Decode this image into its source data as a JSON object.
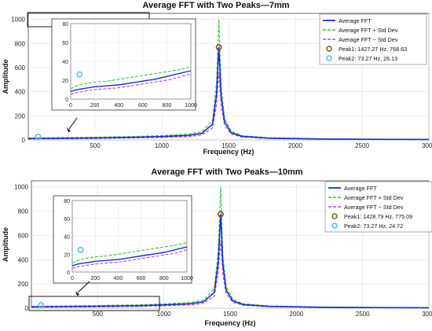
{
  "colors": {
    "mean": "#1a2ed6",
    "plus": "#3fc23f",
    "minus": "#b04ae0",
    "peak1": "#7a5a1e",
    "peak2": "#5bb8e8",
    "box": "#000000"
  },
  "chart_data": [
    {
      "type": "line",
      "title": "Average FFT with Two Peaks—7mm",
      "xlabel": "Frequency (Hz)",
      "ylabel": "Amplitude",
      "xlim": [
        0,
        3000
      ],
      "ylim": [
        0,
        1050
      ],
      "xticks": [
        "500",
        "1000",
        "1500",
        "2000",
        "2500",
        "3000"
      ],
      "xtick_values": [
        500,
        1000,
        1500,
        2000,
        2500,
        3000
      ],
      "yticks": [
        "0",
        "200",
        "400",
        "600",
        "800",
        "1000"
      ],
      "ytick_values": [
        0,
        200,
        400,
        600,
        800,
        1000
      ],
      "grid": true,
      "legend_position": "top-right",
      "legend": [
        "Average FFT",
        "Average FFT + Std Dev",
        "Average FFT − Std Dev",
        "Peak1: 1427.27 Hz, 768.63",
        "Peak2: 73.27 Hz, 26.13"
      ],
      "series": [
        {
          "name": "Average FFT",
          "x": [
            0,
            200,
            500,
            800,
            1000,
            1200,
            1300,
            1380,
            1410,
            1427.27,
            1445,
            1470,
            1520,
            1600,
            1800,
            2200,
            2600,
            3000
          ],
          "y": [
            12,
            14,
            17,
            22,
            28,
            38,
            55,
            130,
            380,
            768.63,
            360,
            150,
            60,
            30,
            15,
            8,
            5,
            4
          ]
        },
        {
          "name": "Average FFT + Std Dev",
          "x": [
            0,
            200,
            500,
            800,
            1000,
            1200,
            1300,
            1380,
            1410,
            1427.27,
            1445,
            1470,
            1520,
            1600,
            1800,
            2200,
            2600,
            3000
          ],
          "y": [
            16,
            19,
            23,
            29,
            36,
            48,
            68,
            160,
            470,
            1000,
            440,
            180,
            72,
            36,
            18,
            10,
            6,
            5
          ]
        },
        {
          "name": "Average FFT − Std Dev",
          "x": [
            0,
            200,
            500,
            800,
            1000,
            1200,
            1300,
            1380,
            1410,
            1427.27,
            1445,
            1470,
            1520,
            1600,
            1800,
            2200,
            2600,
            3000
          ],
          "y": [
            8,
            10,
            12,
            16,
            21,
            28,
            42,
            100,
            290,
            560,
            280,
            120,
            48,
            24,
            12,
            6,
            4,
            3
          ]
        }
      ],
      "peaks": [
        {
          "x": 1427.27,
          "y": 768.63
        },
        {
          "x": 73.27,
          "y": 26.13
        }
      ],
      "inset": {
        "xlim": [
          0,
          1000
        ],
        "ylim": [
          0,
          80
        ],
        "xticks": [
          "0",
          "200",
          "400",
          "600",
          "800",
          "1000"
        ],
        "xtick_values": [
          0,
          200,
          400,
          600,
          800,
          1000
        ],
        "yticks": [
          "0",
          "20",
          "40",
          "60",
          "80"
        ],
        "ytick_values": [
          0,
          20,
          40,
          60,
          80
        ],
        "series": [
          {
            "x": [
              0,
              50,
              100,
              150,
              200,
              300,
              400,
              500,
              600,
              700,
              800,
              900,
              1000
            ],
            "y": [
              8,
              10,
              11,
              12,
              13,
              14,
              15,
              17,
              19,
              21,
              24,
              27,
              30
            ]
          },
          {
            "x": [
              0,
              50,
              100,
              150,
              200,
              300,
              400,
              500,
              600,
              700,
              800,
              900,
              1000
            ],
            "y": [
              11,
              14,
              16,
              17,
              18,
              19,
              21,
              23,
              25,
              27,
              29,
              31,
              34
            ]
          },
          {
            "x": [
              0,
              50,
              100,
              150,
              200,
              300,
              400,
              500,
              600,
              700,
              800,
              900,
              1000
            ],
            "y": [
              5,
              7,
              8,
              9,
              10,
              11,
              12,
              14,
              16,
              18,
              20,
              23,
              27
            ]
          }
        ]
      }
    },
    {
      "type": "line",
      "title": "Average FFT with Two Peaks—10mm",
      "xlabel": "Frequency (Hz)",
      "ylabel": "Amplitude",
      "xlim": [
        0,
        3000
      ],
      "ylim": [
        0,
        1050
      ],
      "xticks": [
        "500",
        "1000",
        "1500",
        "2000",
        "2500",
        "3000"
      ],
      "xtick_values": [
        500,
        1000,
        1500,
        2000,
        2500,
        3000
      ],
      "yticks": [
        "0",
        "200",
        "400",
        "600",
        "800",
        "1000"
      ],
      "ytick_values": [
        0,
        200,
        400,
        600,
        800,
        1000
      ],
      "grid": true,
      "legend_position": "top-right",
      "legend": [
        "Average FFT",
        "Average FFT + Std Dev",
        "Average FFT − Std Dev",
        "Peak1: 1428.79 Hz, 775.09",
        "Peak2: 73.27 Hz, 24.72"
      ],
      "series": [
        {
          "name": "Average FFT",
          "x": [
            0,
            200,
            500,
            800,
            1000,
            1200,
            1300,
            1380,
            1410,
            1428.79,
            1445,
            1470,
            1520,
            1600,
            1800,
            2200,
            2600,
            3000
          ],
          "y": [
            11,
            13,
            16,
            21,
            27,
            37,
            54,
            130,
            380,
            775.09,
            360,
            150,
            60,
            30,
            15,
            8,
            5,
            4
          ]
        },
        {
          "name": "Average FFT + Std Dev",
          "x": [
            0,
            200,
            500,
            800,
            1000,
            1200,
            1300,
            1380,
            1410,
            1428.79,
            1445,
            1470,
            1520,
            1600,
            1800,
            2200,
            2600,
            3000
          ],
          "y": [
            15,
            18,
            22,
            28,
            35,
            47,
            67,
            160,
            470,
            1000,
            440,
            180,
            72,
            36,
            18,
            10,
            6,
            5
          ]
        },
        {
          "name": "Average FFT − Std Dev",
          "x": [
            0,
            200,
            500,
            800,
            1000,
            1200,
            1300,
            1380,
            1410,
            1428.79,
            1445,
            1470,
            1520,
            1600,
            1800,
            2200,
            2600,
            3000
          ],
          "y": [
            7,
            9,
            11,
            15,
            20,
            27,
            41,
            100,
            290,
            560,
            280,
            120,
            48,
            24,
            12,
            6,
            4,
            3
          ]
        }
      ],
      "peaks": [
        {
          "x": 1428.79,
          "y": 775.09
        },
        {
          "x": 73.27,
          "y": 24.72
        }
      ],
      "inset": {
        "xlim": [
          0,
          1000
        ],
        "ylim": [
          0,
          80
        ],
        "xticks": [
          "0",
          "200",
          "400",
          "600",
          "800",
          "1000"
        ],
        "xtick_values": [
          0,
          200,
          400,
          600,
          800,
          1000
        ],
        "yticks": [
          "0",
          "20",
          "40",
          "60",
          "80"
        ],
        "ytick_values": [
          0,
          20,
          40,
          60,
          80
        ],
        "series": [
          {
            "x": [
              0,
              50,
              100,
              150,
              200,
              300,
              400,
              500,
              600,
              700,
              800,
              900,
              1000
            ],
            "y": [
              7,
              9,
              10,
              11,
              12,
              13,
              14,
              16,
              18,
              20,
              22,
              25,
              28
            ]
          },
          {
            "x": [
              0,
              50,
              100,
              150,
              200,
              300,
              400,
              500,
              600,
              700,
              800,
              900,
              1000
            ],
            "y": [
              10,
              13,
              15,
              16,
              17,
              18,
              20,
              22,
              24,
              26,
              28,
              30,
              33
            ]
          },
          {
            "x": [
              0,
              50,
              100,
              150,
              200,
              300,
              400,
              500,
              600,
              700,
              800,
              900,
              1000
            ],
            "y": [
              4,
              6,
              7,
              8,
              9,
              10,
              11,
              13,
              15,
              17,
              19,
              21,
              25
            ]
          }
        ]
      }
    }
  ]
}
